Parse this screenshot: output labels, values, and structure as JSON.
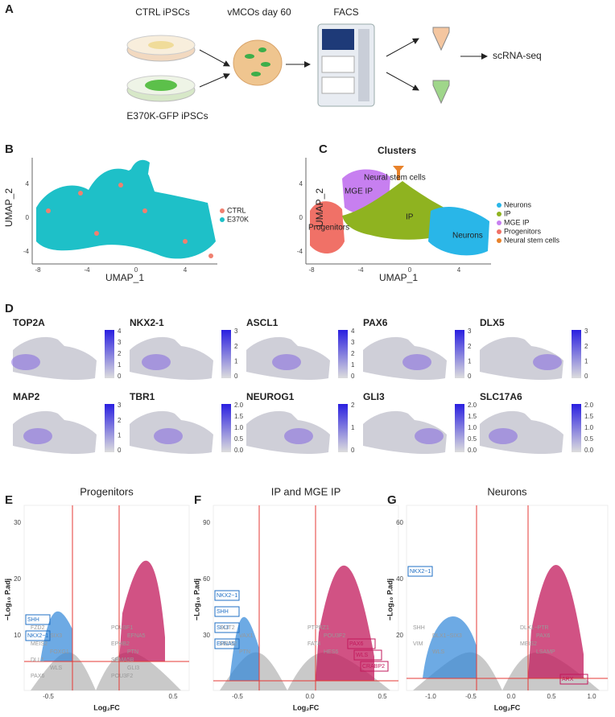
{
  "panel_a": {
    "letter": "A",
    "ctrl": "CTRL iPSCs",
    "mutant": "E370K-GFP iPSCs",
    "organoid": "vMCOs day 60",
    "facs": "FACS",
    "output": "scRNA-seq"
  },
  "panel_b": {
    "letter": "B",
    "x_label": "UMAP_1",
    "y_label": "UMAP_2",
    "xticks": [
      "-8",
      "-4",
      "0",
      "4"
    ],
    "yticks": [
      "4",
      "0",
      "-4"
    ],
    "legend": [
      {
        "name": "CTRL",
        "color": "#f08070"
      },
      {
        "name": "E370K",
        "color": "#1ec0c8"
      }
    ]
  },
  "panel_c": {
    "letter": "C",
    "title": "Clusters",
    "x_label": "UMAP_1",
    "y_label": "UMAP_2",
    "xticks": [
      "-8",
      "-4",
      "0",
      "4"
    ],
    "yticks": [
      "4",
      "0",
      "-4"
    ],
    "cluster_labels": [
      "Neural stem cells",
      "MGE IP",
      "IP",
      "Progenitors",
      "Neurons"
    ],
    "legend": [
      {
        "name": "Neurons",
        "color": "#29b6e8"
      },
      {
        "name": "IP",
        "color": "#8fb320"
      },
      {
        "name": "MGE IP",
        "color": "#c77ff0"
      },
      {
        "name": "Progenitors",
        "color": "#f07167"
      },
      {
        "name": "Neural stem cells",
        "color": "#e8822a"
      }
    ]
  },
  "panel_d": {
    "letter": "D",
    "features": [
      {
        "gene": "TOP2A",
        "scale": [
          "4",
          "3",
          "2",
          "1",
          "0"
        ]
      },
      {
        "gene": "NKX2-1",
        "scale": [
          "3",
          "2",
          "1",
          "0"
        ]
      },
      {
        "gene": "ASCL1",
        "scale": [
          "4",
          "3",
          "2",
          "1",
          "0"
        ]
      },
      {
        "gene": "PAX6",
        "scale": [
          "3",
          "2",
          "1",
          "0"
        ]
      },
      {
        "gene": "DLX5",
        "scale": [
          "3",
          "2",
          "1",
          "0"
        ]
      },
      {
        "gene": "MAP2",
        "scale": [
          "3",
          "2",
          "1",
          "0"
        ]
      },
      {
        "gene": "TBR1",
        "scale": [
          "2.0",
          "1.5",
          "1.0",
          "0.5",
          "0.0"
        ]
      },
      {
        "gene": "NEUROG1",
        "scale": [
          "2",
          "1",
          "0"
        ]
      },
      {
        "gene": "GLI3",
        "scale": [
          "2.0",
          "1.5",
          "1.0",
          "0.5",
          "0.0"
        ]
      },
      {
        "gene": "SLC17A6",
        "scale": [
          "2.0",
          "1.5",
          "1.0",
          "0.5",
          "0.0"
        ]
      }
    ]
  },
  "volcano": [
    {
      "letter": "E",
      "title": "Progenitors",
      "x_label": "Log₂FC",
      "y_label": "−Log₁₀ P.adj",
      "xticks": [
        "-0.5",
        "0.5"
      ],
      "yticks": [
        "30",
        "20",
        "10"
      ],
      "down_genes": [
        "SHH",
        "NKX2−1"
      ],
      "up_genes": [],
      "other_genes": [
        "FZD2",
        "POU3F1",
        "SIX3",
        "EFNA5",
        "MEIS2",
        "EPHB2",
        "FOXG1",
        "PTN",
        "DLL1",
        "SEMA5B",
        "WLS",
        "GLI3",
        "PAX6",
        "POU3F2"
      ]
    },
    {
      "letter": "F",
      "title": "IP and MGE IP",
      "x_label": "Log₂FC",
      "y_label": "−Log₁₀ P.adj",
      "xticks": [
        "-0.5",
        "0.0",
        "0.5"
      ],
      "yticks": [
        "90",
        "60",
        "30"
      ],
      "down_genes": [
        "NKX2−1",
        "SHH",
        "SIX3",
        "EFNA5"
      ],
      "up_genes": [
        "PAX6",
        "WLS",
        "CRABP2"
      ],
      "other_genes": [
        "SLIT2",
        "PTPRZ1",
        "VAX1",
        "POU3F2",
        "MEIS2",
        "FAT4",
        "PTN",
        "HES6"
      ]
    },
    {
      "letter": "G",
      "title": "Neurons",
      "x_label": "Log₂FC",
      "y_label": "−Log₁₀ P.adj",
      "xticks": [
        "-1.0",
        "-0.5",
        "0.0",
        "0.5",
        "1.0"
      ],
      "yticks": [
        "60",
        "40",
        "20"
      ],
      "down_genes": [
        "NKX2−1"
      ],
      "up_genes": [
        "ARX"
      ],
      "other_genes": [
        "SHH",
        "DLX1−PTR",
        "DLX1−SIX3",
        "PAX6",
        "VIM",
        "MEIS2",
        "WLS",
        "LSAMP"
      ]
    }
  ]
}
